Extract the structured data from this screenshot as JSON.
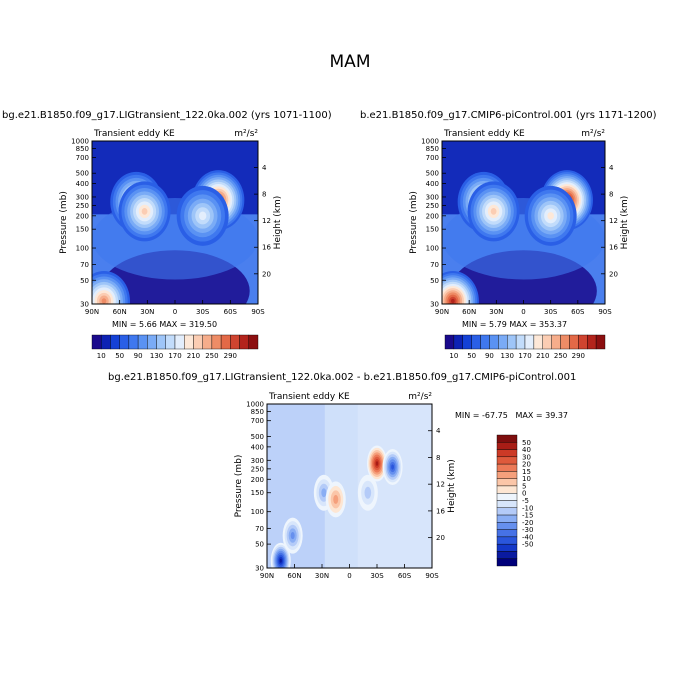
{
  "title": "MAM",
  "colormap": {
    "main": [
      "#1a0a8c",
      "#0d22b4",
      "#1441d6",
      "#2a5fe6",
      "#3f78ef",
      "#5a92f3",
      "#7aabf6",
      "#9ec5f8",
      "#c2dcfb",
      "#e3eefc",
      "#fde8d8",
      "#fbcdb3",
      "#f6ad8b",
      "#ee8c66",
      "#e36947",
      "#cf4430",
      "#b3241c",
      "#8c0f10"
    ],
    "main_levels": [
      "10",
      "50",
      "90",
      "130",
      "170",
      "210",
      "250",
      "290"
    ],
    "diff": [
      "#00007a",
      "#0a1aa0",
      "#1438c8",
      "#2a56dc",
      "#4672e6",
      "#6690ee",
      "#8aaef4",
      "#b4cbf8",
      "#d8e6fb",
      "#eef5fd",
      "#fde6d3",
      "#fbc6a8",
      "#f5a07c",
      "#ec7a58",
      "#de5a3c",
      "#cc3a26",
      "#a81d16",
      "#7e0e0e"
    ],
    "diff_levels": [
      "50",
      "40",
      "30",
      "20",
      "15",
      "10",
      "5",
      "0",
      "-5",
      "-10",
      "-15",
      "-20",
      "-30",
      "-40",
      "-50"
    ]
  },
  "panels": [
    {
      "title": "bg.e21.B1850.f09_g17.LIGtransient_122.0ka.002 (yrs 1071-1100)",
      "left_label": "Transient eddy KE",
      "units": "m²/s²",
      "min_label": "MIN = 5.66",
      "max_label": "MAX = 319.50"
    },
    {
      "title": "b.e21.B1850.f09_g17.CMIP6-piControl.001 (yrs 1171-1200)",
      "left_label": "Transient eddy KE",
      "units": "m²/s²",
      "min_label": "MIN = 5.79",
      "max_label": "MAX = 353.37"
    },
    {
      "title": "bg.e21.B1850.f09_g17.LIGtransient_122.0ka.002 - b.e21.B1850.f09_g17.CMIP6-piControl.001",
      "left_label": "Transient eddy KE",
      "units": "m²/s²",
      "min_label": "MIN = -67.75",
      "max_label": "MAX = 39.37"
    }
  ],
  "chart_data": [
    {
      "type": "heatmap",
      "title": "bg.e21.B1850.f09_g17.LIGtransient_122.0ka.002 (yrs 1071-1100)",
      "xlabel": "",
      "ylabel": "Pressure (mb)",
      "y2label": "Height (km)",
      "x_ticks": [
        "90N",
        "60N",
        "30N",
        "0",
        "30S",
        "60S",
        "90S"
      ],
      "y_ticks": [
        "30",
        "50",
        "70",
        "100",
        "150",
        "200",
        "250",
        "300",
        "400",
        "500",
        "700",
        "850",
        "1000"
      ],
      "y2_ticks": [
        "20",
        "16",
        "12",
        "8",
        "4"
      ],
      "xlim": [
        90,
        -90
      ],
      "ylim": [
        1000,
        30
      ],
      "y_scale": "log",
      "z_min": 5.66,
      "z_max": 319.5,
      "features": [
        {
          "lat": 77,
          "p": 32,
          "value": 250
        },
        {
          "lat": 42,
          "p": 270,
          "value": 230
        },
        {
          "lat": 33,
          "p": 220,
          "value": 210
        },
        {
          "lat": -47,
          "p": 280,
          "value": 300
        },
        {
          "lat": -30,
          "p": 200,
          "value": 180
        }
      ]
    },
    {
      "type": "heatmap",
      "title": "b.e21.B1850.f09_g17.CMIP6-piControl.001 (yrs 1171-1200)",
      "xlabel": "",
      "ylabel": "Pressure (mb)",
      "y2label": "Height (km)",
      "x_ticks": [
        "90N",
        "60N",
        "30N",
        "0",
        "30S",
        "60S",
        "90S"
      ],
      "y_ticks": [
        "30",
        "50",
        "70",
        "100",
        "150",
        "200",
        "250",
        "300",
        "400",
        "500",
        "700",
        "850",
        "1000"
      ],
      "y2_ticks": [
        "20",
        "16",
        "12",
        "8",
        "4"
      ],
      "xlim": [
        90,
        -90
      ],
      "ylim": [
        1000,
        30
      ],
      "y_scale": "log",
      "z_min": 5.79,
      "z_max": 353.37,
      "features": [
        {
          "lat": 78,
          "p": 32,
          "value": 320
        },
        {
          "lat": 44,
          "p": 270,
          "value": 230
        },
        {
          "lat": 33,
          "p": 220,
          "value": 220
        },
        {
          "lat": -48,
          "p": 280,
          "value": 340
        },
        {
          "lat": -30,
          "p": 200,
          "value": 190
        }
      ]
    },
    {
      "type": "heatmap",
      "title": "bg.e21.B1850.f09_g17.LIGtransient_122.0ka.002 - b.e21.B1850.f09_g17.CMIP6-piControl.001",
      "xlabel": "",
      "ylabel": "Pressure (mb)",
      "y2label": "Height (km)",
      "x_ticks": [
        "90N",
        "60N",
        "30N",
        "0",
        "30S",
        "60S",
        "90S"
      ],
      "y_ticks": [
        "30",
        "50",
        "70",
        "100",
        "150",
        "200",
        "250",
        "300",
        "400",
        "500",
        "700",
        "850",
        "1000"
      ],
      "y2_ticks": [
        "20",
        "16",
        "12",
        "8",
        "4"
      ],
      "xlim": [
        90,
        -90
      ],
      "ylim": [
        1000,
        30
      ],
      "y_scale": "log",
      "z_min": -67.75,
      "z_max": 39.37,
      "features": [
        {
          "lat": 75,
          "p": 35,
          "value": -55
        },
        {
          "lat": 62,
          "p": 60,
          "value": -30
        },
        {
          "lat": 28,
          "p": 150,
          "value": -25
        },
        {
          "lat": 15,
          "p": 130,
          "value": 10
        },
        {
          "lat": -30,
          "p": 280,
          "value": 35
        },
        {
          "lat": -47,
          "p": 260,
          "value": -45
        },
        {
          "lat": -20,
          "p": 150,
          "value": -20
        }
      ]
    }
  ]
}
